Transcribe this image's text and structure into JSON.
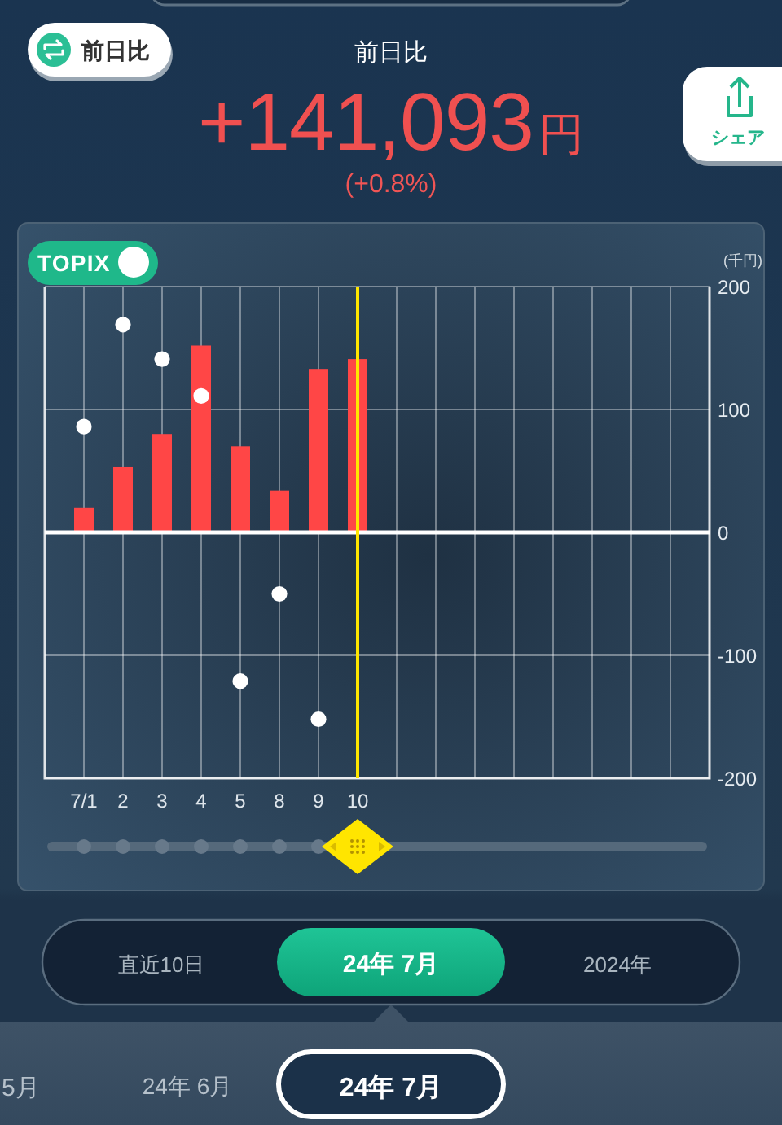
{
  "chart_data": {
    "type": "bar",
    "title": "前日比",
    "subtitle": "+141,093円",
    "ylabel": "(千円)",
    "categories": [
      "7/1",
      "2",
      "3",
      "4",
      "5",
      "8",
      "9",
      "10",
      null,
      null,
      null,
      null,
      null,
      null,
      null,
      null
    ],
    "series": [
      {
        "color": "#ff4646",
        "values": [
          20,
          53,
          80,
          152,
          70,
          34,
          133,
          141,
          null,
          null,
          null,
          null,
          null,
          null,
          null,
          null
        ]
      },
      {
        "type": "scatter",
        "name": "TOPIX",
        "color": "#ffffff",
        "values": [
          86,
          169,
          141,
          111,
          -121,
          -50,
          -152,
          null,
          null,
          null,
          null,
          null,
          null,
          null,
          null,
          null
        ]
      }
    ],
    "ylim": [
      -200,
      200
    ],
    "yticks": [
      -200,
      -100,
      0,
      100,
      200
    ],
    "grid": true,
    "legend": "top left",
    "marker": "circle",
    "ref_lines": [
      {
        "axis": "y",
        "value": 0,
        "color": "#ffffff"
      },
      {
        "axis": "x",
        "value": "10",
        "color": "#ffe600"
      }
    ],
    "annotations": [
      "(+0.8%)",
      "前日比",
      "シェア",
      "直近10日",
      "24年 7月",
      "2024年",
      "5月",
      "24年 6月",
      "24年 7月"
    ]
  }
}
